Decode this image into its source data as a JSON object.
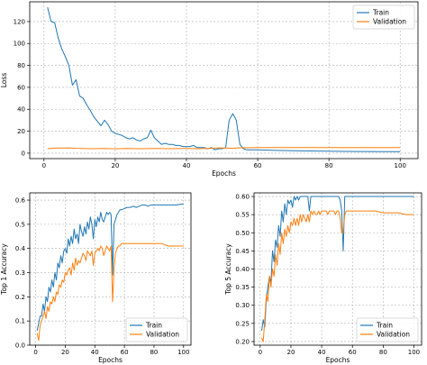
{
  "colors": {
    "train": "#1f77b4",
    "validation": "#ff7f0e",
    "grid": "#b0b0b0"
  },
  "chart_data": [
    {
      "type": "line",
      "id": "loss",
      "xlabel": "Epochs",
      "ylabel": "Loss",
      "xlim": [
        -4,
        105
      ],
      "ylim": [
        -5,
        138
      ],
      "xticks": [
        0,
        20,
        40,
        60,
        80,
        100
      ],
      "yticks": [
        0,
        20,
        40,
        60,
        80,
        100,
        120
      ],
      "grid": true,
      "legend_position": "top-right",
      "series": [
        {
          "name": "Train",
          "color_key": "train",
          "x": [
            1,
            2,
            3,
            4,
            5,
            6,
            7,
            8,
            9,
            10,
            11,
            12,
            13,
            14,
            15,
            16,
            17,
            18,
            19,
            20,
            21,
            22,
            23,
            24,
            25,
            26,
            27,
            28,
            29,
            30,
            31,
            32,
            33,
            34,
            35,
            36,
            37,
            38,
            39,
            40,
            41,
            42,
            43,
            44,
            45,
            46,
            47,
            48,
            49,
            50,
            51,
            52,
            53,
            54,
            55,
            56,
            57,
            58,
            60,
            65,
            70,
            75,
            80,
            85,
            90,
            95,
            100
          ],
          "y": [
            133,
            120,
            119,
            105,
            95,
            88,
            80,
            62,
            67,
            52,
            50,
            44,
            39,
            33,
            29,
            25,
            30,
            26,
            20,
            18,
            17,
            16,
            14,
            13,
            14,
            12,
            11,
            13,
            14,
            21,
            14,
            11,
            8,
            9,
            8,
            8,
            7,
            7,
            6,
            6,
            6,
            7,
            5,
            5,
            5,
            4,
            5,
            3,
            4,
            4,
            5,
            30,
            36,
            30,
            8,
            4,
            3,
            3,
            3,
            2.5,
            2.2,
            2,
            1.8,
            1.6,
            1.5,
            1.4,
            1.3
          ]
        },
        {
          "name": "Validation",
          "color_key": "validation",
          "x": [
            1,
            3,
            5,
            7,
            9,
            11,
            13,
            15,
            17,
            19,
            21,
            23,
            25,
            27,
            29,
            31,
            33,
            35,
            37,
            39,
            41,
            43,
            45,
            47,
            49,
            51,
            53,
            55,
            60,
            70,
            80,
            90,
            100
          ],
          "y": [
            4,
            4.5,
            4.7,
            4.8,
            4.4,
            4.2,
            4.0,
            4.1,
            4.3,
            4.0,
            4.0,
            4.2,
            4.1,
            4.0,
            4.1,
            4.3,
            4.2,
            4.0,
            4.1,
            4.2,
            4.2,
            4.0,
            4.3,
            4.4,
            4.8,
            4.6,
            4.4,
            4.9,
            5,
            5,
            5,
            5,
            5
          ]
        }
      ]
    },
    {
      "type": "line",
      "id": "top1",
      "xlabel": "Epochs",
      "ylabel": "Top 1 Accuracy",
      "xlim": [
        -4,
        105
      ],
      "ylim": [
        0,
        0.63
      ],
      "xticks": [
        0,
        20,
        40,
        60,
        80,
        100
      ],
      "yticks": [
        0.0,
        0.1,
        0.2,
        0.3,
        0.4,
        0.5,
        0.6
      ],
      "ytick_labels": [
        "0.0",
        "0.1",
        "0.2",
        "0.3",
        "0.4",
        "0.5",
        "0.6"
      ],
      "grid": true,
      "legend_position": "bottom-right",
      "series": [
        {
          "name": "Train",
          "color_key": "train",
          "x": [
            1,
            2,
            3,
            4,
            5,
            6,
            7,
            8,
            9,
            10,
            11,
            12,
            13,
            14,
            15,
            16,
            17,
            18,
            19,
            20,
            21,
            22,
            23,
            24,
            25,
            26,
            27,
            28,
            29,
            30,
            31,
            32,
            33,
            34,
            35,
            36,
            37,
            38,
            39,
            40,
            41,
            42,
            43,
            44,
            45,
            46,
            47,
            48,
            49,
            50,
            51,
            52,
            53,
            54,
            55,
            56,
            57,
            58,
            60,
            62,
            64,
            66,
            68,
            70,
            72,
            74,
            76,
            78,
            80,
            85,
            90,
            95,
            100
          ],
          "y": [
            0.06,
            0.09,
            0.12,
            0.12,
            0.17,
            0.14,
            0.2,
            0.18,
            0.24,
            0.22,
            0.27,
            0.24,
            0.3,
            0.27,
            0.34,
            0.32,
            0.37,
            0.34,
            0.39,
            0.4,
            0.38,
            0.44,
            0.41,
            0.45,
            0.42,
            0.48,
            0.44,
            0.46,
            0.42,
            0.5,
            0.47,
            0.45,
            0.49,
            0.46,
            0.51,
            0.48,
            0.53,
            0.5,
            0.44,
            0.52,
            0.49,
            0.53,
            0.51,
            0.55,
            0.52,
            0.51,
            0.53,
            0.55,
            0.54,
            0.55,
            0.54,
            0.29,
            0.5,
            0.52,
            0.54,
            0.55,
            0.56,
            0.56,
            0.565,
            0.57,
            0.57,
            0.575,
            0.57,
            0.575,
            0.58,
            0.58,
            0.575,
            0.58,
            0.58,
            0.58,
            0.58,
            0.58,
            0.585
          ]
        },
        {
          "name": "Validation",
          "color_key": "validation",
          "x": [
            1,
            2,
            3,
            4,
            5,
            6,
            7,
            8,
            9,
            10,
            11,
            12,
            13,
            14,
            15,
            16,
            17,
            18,
            19,
            20,
            21,
            22,
            23,
            24,
            25,
            26,
            27,
            28,
            29,
            30,
            31,
            32,
            33,
            34,
            35,
            36,
            37,
            38,
            39,
            40,
            41,
            42,
            43,
            44,
            45,
            46,
            47,
            48,
            49,
            50,
            51,
            52,
            53,
            54,
            55,
            56,
            57,
            58,
            60,
            62,
            64,
            66,
            68,
            70,
            75,
            80,
            85,
            90,
            95,
            100
          ],
          "y": [
            0.05,
            0.02,
            0.08,
            0.1,
            0.12,
            0.14,
            0.11,
            0.16,
            0.14,
            0.18,
            0.17,
            0.2,
            0.18,
            0.22,
            0.21,
            0.25,
            0.24,
            0.27,
            0.26,
            0.3,
            0.29,
            0.31,
            0.32,
            0.29,
            0.34,
            0.31,
            0.36,
            0.33,
            0.35,
            0.34,
            0.36,
            0.38,
            0.37,
            0.35,
            0.39,
            0.38,
            0.37,
            0.39,
            0.33,
            0.38,
            0.39,
            0.4,
            0.39,
            0.41,
            0.4,
            0.37,
            0.39,
            0.41,
            0.4,
            0.39,
            0.41,
            0.18,
            0.32,
            0.38,
            0.4,
            0.41,
            0.41,
            0.42,
            0.42,
            0.42,
            0.42,
            0.42,
            0.42,
            0.42,
            0.42,
            0.42,
            0.42,
            0.41,
            0.41,
            0.41
          ]
        }
      ]
    },
    {
      "type": "line",
      "id": "top5",
      "xlabel": "Epochs",
      "ylabel": "Top 5 Accuracy",
      "xlim": [
        -4,
        105
      ],
      "ylim": [
        0.19,
        0.61
      ],
      "xticks": [
        0,
        20,
        40,
        60,
        80,
        100
      ],
      "yticks": [
        0.2,
        0.25,
        0.3,
        0.35,
        0.4,
        0.45,
        0.5,
        0.55,
        0.6
      ],
      "ytick_labels": [
        "0.20",
        "0.25",
        "0.30",
        "0.35",
        "0.40",
        "0.45",
        "0.50",
        "0.55",
        "0.60"
      ],
      "grid": true,
      "legend_position": "bottom-right",
      "series": [
        {
          "name": "Train",
          "color_key": "train",
          "x": [
            1,
            2,
            3,
            4,
            5,
            6,
            7,
            8,
            9,
            10,
            11,
            12,
            13,
            14,
            15,
            16,
            17,
            18,
            19,
            20,
            21,
            22,
            23,
            24,
            25,
            26,
            27,
            28,
            29,
            30,
            31,
            32,
            33,
            34,
            35,
            36,
            37,
            38,
            39,
            40,
            41,
            42,
            43,
            44,
            45,
            46,
            47,
            48,
            49,
            50,
            51,
            52,
            53,
            54,
            55,
            56,
            57,
            58,
            60,
            70,
            80,
            90,
            100
          ],
          "y": [
            0.23,
            0.26,
            0.24,
            0.32,
            0.35,
            0.38,
            0.36,
            0.45,
            0.42,
            0.48,
            0.46,
            0.52,
            0.49,
            0.56,
            0.53,
            0.58,
            0.55,
            0.59,
            0.58,
            0.59,
            0.57,
            0.6,
            0.59,
            0.6,
            0.59,
            0.6,
            0.6,
            0.6,
            0.6,
            0.6,
            0.6,
            0.56,
            0.6,
            0.6,
            0.6,
            0.6,
            0.6,
            0.6,
            0.6,
            0.6,
            0.6,
            0.6,
            0.6,
            0.6,
            0.6,
            0.6,
            0.6,
            0.6,
            0.6,
            0.6,
            0.6,
            0.59,
            0.56,
            0.45,
            0.6,
            0.6,
            0.6,
            0.6,
            0.6,
            0.6,
            0.6,
            0.6,
            0.6
          ]
        },
        {
          "name": "Validation",
          "color_key": "validation",
          "x": [
            1,
            2,
            3,
            4,
            5,
            6,
            7,
            8,
            9,
            10,
            11,
            12,
            13,
            14,
            15,
            16,
            17,
            18,
            19,
            20,
            21,
            22,
            23,
            24,
            25,
            26,
            27,
            28,
            29,
            30,
            31,
            32,
            33,
            34,
            35,
            36,
            37,
            38,
            39,
            40,
            41,
            42,
            43,
            44,
            45,
            46,
            47,
            48,
            49,
            50,
            51,
            52,
            53,
            54,
            55,
            56,
            57,
            58,
            60,
            65,
            70,
            75,
            80,
            85,
            90,
            95,
            100
          ],
          "y": [
            0.21,
            0.2,
            0.26,
            0.33,
            0.31,
            0.38,
            0.35,
            0.4,
            0.38,
            0.44,
            0.41,
            0.47,
            0.44,
            0.5,
            0.47,
            0.51,
            0.49,
            0.52,
            0.5,
            0.53,
            0.52,
            0.54,
            0.52,
            0.54,
            0.52,
            0.55,
            0.53,
            0.55,
            0.54,
            0.53,
            0.55,
            0.53,
            0.56,
            0.55,
            0.56,
            0.55,
            0.55,
            0.56,
            0.55,
            0.56,
            0.56,
            0.56,
            0.56,
            0.55,
            0.56,
            0.56,
            0.56,
            0.56,
            0.55,
            0.56,
            0.56,
            0.54,
            0.5,
            0.5,
            0.55,
            0.56,
            0.56,
            0.56,
            0.56,
            0.56,
            0.56,
            0.56,
            0.555,
            0.555,
            0.555,
            0.55,
            0.55
          ]
        }
      ]
    }
  ]
}
